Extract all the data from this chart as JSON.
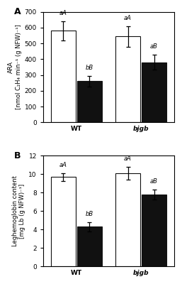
{
  "panel_A": {
    "title": "A",
    "ylabel_line1": "ARA",
    "ylabel_line2": "[nmol C₂H₄ min⁻¹ (g NFW)⁻¹]",
    "ylim": [
      0,
      700
    ],
    "yticks": [
      0,
      100,
      200,
      300,
      400,
      500,
      600,
      700
    ],
    "groups": [
      "WT",
      "bjgb"
    ],
    "white_bars": [
      580,
      545
    ],
    "black_bars": [
      260,
      380
    ],
    "white_errors": [
      62,
      65
    ],
    "black_errors": [
      32,
      47
    ],
    "white_labels": [
      "aA",
      "aA"
    ],
    "black_labels": [
      "bB",
      "aB"
    ]
  },
  "panel_B": {
    "title": "B",
    "ylabel_line1": "Leghemoglobin content",
    "ylabel_line2": "[mg Lb (g NFW)⁻¹]",
    "ylim": [
      0,
      12
    ],
    "yticks": [
      0,
      2,
      4,
      6,
      8,
      10,
      12
    ],
    "groups": [
      "WT",
      "bjgb"
    ],
    "white_bars": [
      9.7,
      10.1
    ],
    "black_bars": [
      4.3,
      7.8
    ],
    "white_errors": [
      0.42,
      0.72
    ],
    "black_errors": [
      0.52,
      0.52
    ],
    "white_labels": [
      "aA",
      "aA"
    ],
    "black_labels": [
      "bB",
      "aB"
    ]
  },
  "bar_width": 0.28,
  "white_color": "#ffffff",
  "black_color": "#111111",
  "edge_color": "#111111",
  "label_fontsize": 6.0,
  "axis_label_fontsize": 6.0,
  "tick_fontsize": 6.5,
  "title_fontsize": 9,
  "group_label_fontsize": 7.5,
  "background_color": "#ffffff"
}
